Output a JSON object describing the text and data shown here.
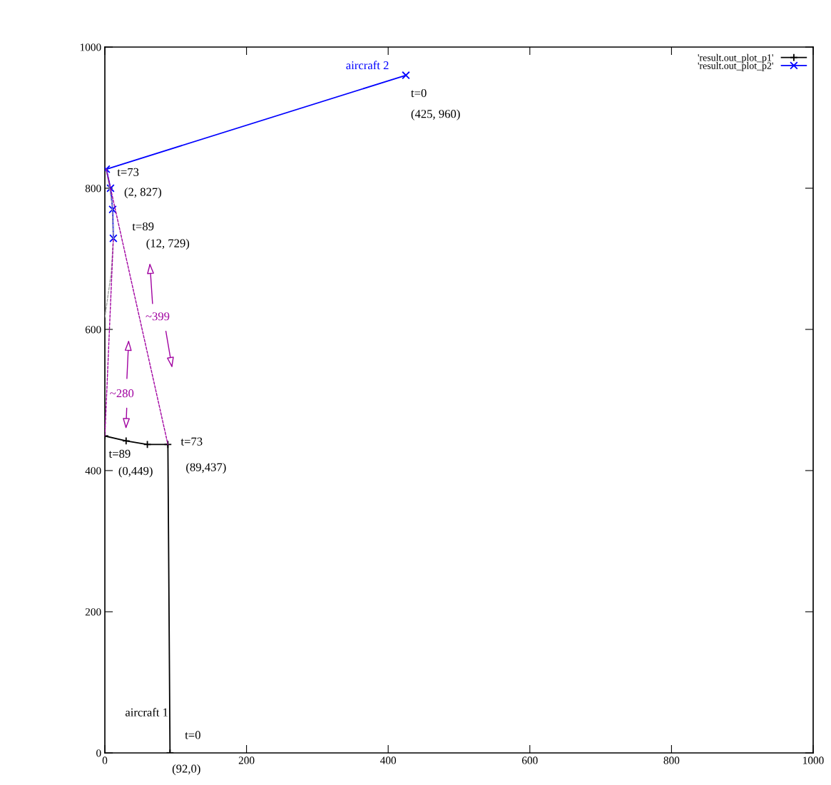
{
  "chart_data": {
    "type": "line",
    "xlim": [
      0,
      1000
    ],
    "ylim": [
      0,
      1000
    ],
    "xticks": [
      0,
      200,
      400,
      600,
      800,
      1000
    ],
    "yticks": [
      0,
      200,
      400,
      600,
      800,
      1000
    ],
    "grid": false,
    "legend": "top right",
    "series": [
      {
        "name": "'result.out_plot_p1'",
        "color": "#000000",
        "marker": "plus",
        "x": [
          92,
          89,
          60,
          30,
          0
        ],
        "values": [
          0,
          437,
          437,
          442,
          449
        ]
      },
      {
        "name": "'result.out_plot_p2'",
        "color": "#0000ff",
        "marker": "cross",
        "x": [
          425,
          2,
          8,
          11,
          12
        ],
        "values": [
          960,
          827,
          800,
          770,
          729
        ]
      },
      {
        "color": "#a000a0",
        "line_style": "dashed",
        "marker": "none",
        "x": [
          2,
          89
        ],
        "values": [
          827,
          437
        ]
      },
      {
        "color": "#a000a0",
        "line_style": "dashed",
        "marker": "none",
        "x": [
          0,
          12
        ],
        "values": [
          449,
          729
        ]
      },
      {
        "color": "#a0a0a0",
        "line_style": "dashed",
        "marker": "none",
        "x": [
          2,
          10,
          12,
          9,
          0
        ],
        "values": [
          827,
          780,
          729,
          680,
          617
        ]
      }
    ],
    "annotations": [
      {
        "text": "t=0",
        "x": 92,
        "y": 0
      },
      {
        "text": "(92,0)",
        "x": 92,
        "y": 0
      },
      "aircraft 1",
      {
        "text": "t=73",
        "x": 89,
        "y": 437
      },
      {
        "text": "(89,437)",
        "x": 89,
        "y": 437
      },
      {
        "text": "t=89",
        "x": 0,
        "y": 449
      },
      "(0,449)",
      {
        "text": "t=0",
        "x": 425,
        "y": 960
      },
      {
        "text": "(425, 960)",
        "x": 425,
        "y": 960
      },
      {
        "text": "aircraft 2",
        "x": 425,
        "y": 960
      },
      {
        "text": "t=73",
        "x": 2,
        "y": 827
      },
      {
        "text": "(2, 827)",
        "x": 2,
        "y": 827
      },
      {
        "text": "t=89",
        "x": 12,
        "y": 729
      },
      {
        "text": "(12, 729)",
        "x": 12,
        "y": 729
      },
      "~399",
      "~280"
    ]
  }
}
